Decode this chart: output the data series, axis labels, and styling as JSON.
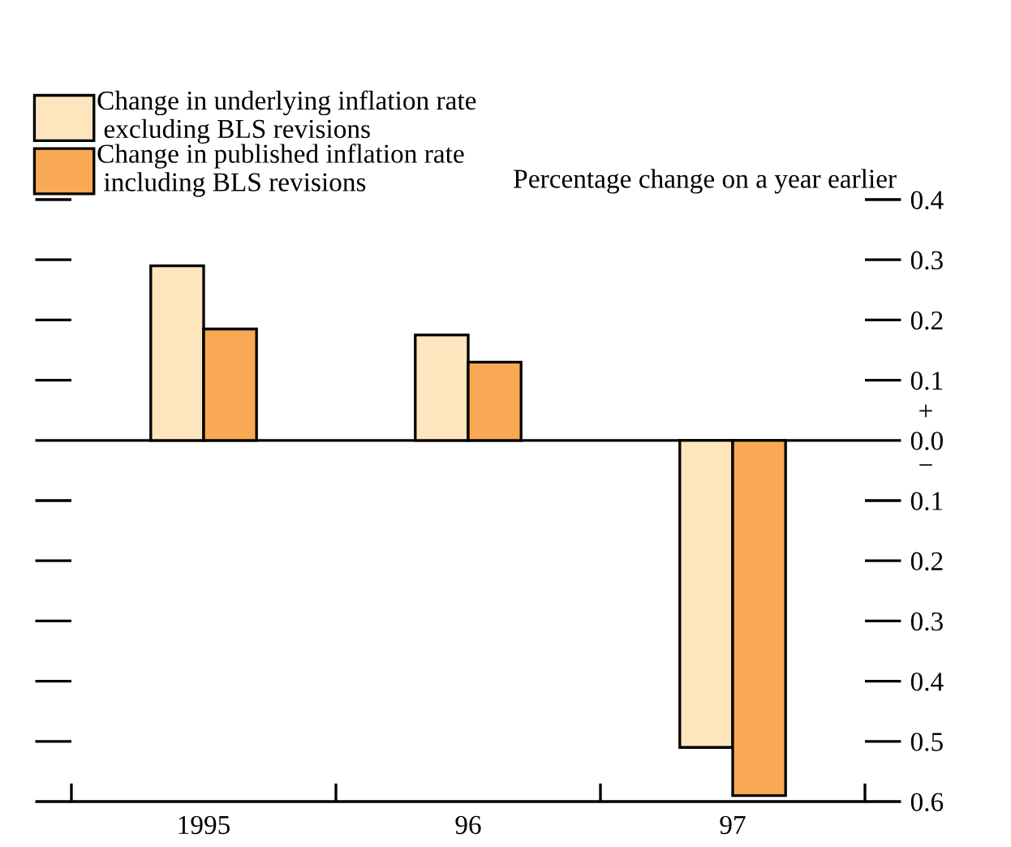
{
  "chart_data": {
    "type": "bar",
    "ylabel": "Percentage change on a year earlier",
    "categories": [
      "1995",
      "96",
      "97"
    ],
    "series": [
      {
        "name": "Change in underlying inflation rate\n excluding BLS revisions",
        "color": "#fde6bd",
        "values": [
          0.29,
          0.175,
          -0.51
        ]
      },
      {
        "name": "Change in published inflation rate\n including BLS revisions",
        "color": "#f9a954",
        "values": [
          0.185,
          0.13,
          -0.59
        ]
      }
    ],
    "ylim": [
      -0.6,
      0.4
    ],
    "yticks": [
      {
        "value": -0.6,
        "label": "0.6"
      },
      {
        "value": -0.5,
        "label": "0.5"
      },
      {
        "value": -0.4,
        "label": "0.4"
      },
      {
        "value": -0.3,
        "label": "0.3"
      },
      {
        "value": -0.2,
        "label": "0.2"
      },
      {
        "value": -0.1,
        "label": "0.1"
      },
      {
        "value": 0.0,
        "label": "0.0"
      },
      0.1,
      0.2,
      0.3,
      0.4
    ],
    "ref_lines": [
      {
        "axis": "y",
        "value": 0.0,
        "color": "#000000"
      }
    ],
    "annotations": [
      "+",
      "−"
    ],
    "legend": "top left",
    "grid": false
  }
}
